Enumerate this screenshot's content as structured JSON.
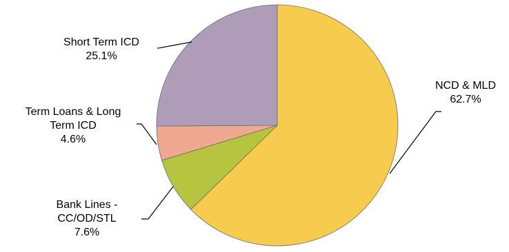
{
  "chart_data": {
    "type": "pie",
    "start_angle": "12 o'clock",
    "direction": "clockwise",
    "legend": "none",
    "slices": [
      {
        "name": "NCD & MLD",
        "lines": [
          "NCD & MLD"
        ],
        "value": 62.7,
        "value_label": "62.7%",
        "color": "#f7cb4d"
      },
      {
        "name": "Bank Lines - CC/OD/STL",
        "lines": [
          "Bank Lines -",
          "CC/OD/STL"
        ],
        "value": 7.6,
        "value_label": "7.6%",
        "color": "#b7c440"
      },
      {
        "name": "Term Loans & Long Term ICD",
        "lines": [
          "Term Loans & Long",
          "Term ICD"
        ],
        "value": 4.6,
        "value_label": "4.6%",
        "color": "#eea990"
      },
      {
        "name": "Short Term ICD",
        "lines": [
          "Short Term ICD"
        ],
        "value": 25.1,
        "value_label": "25.1%",
        "color": "#ae9cb8"
      }
    ]
  }
}
